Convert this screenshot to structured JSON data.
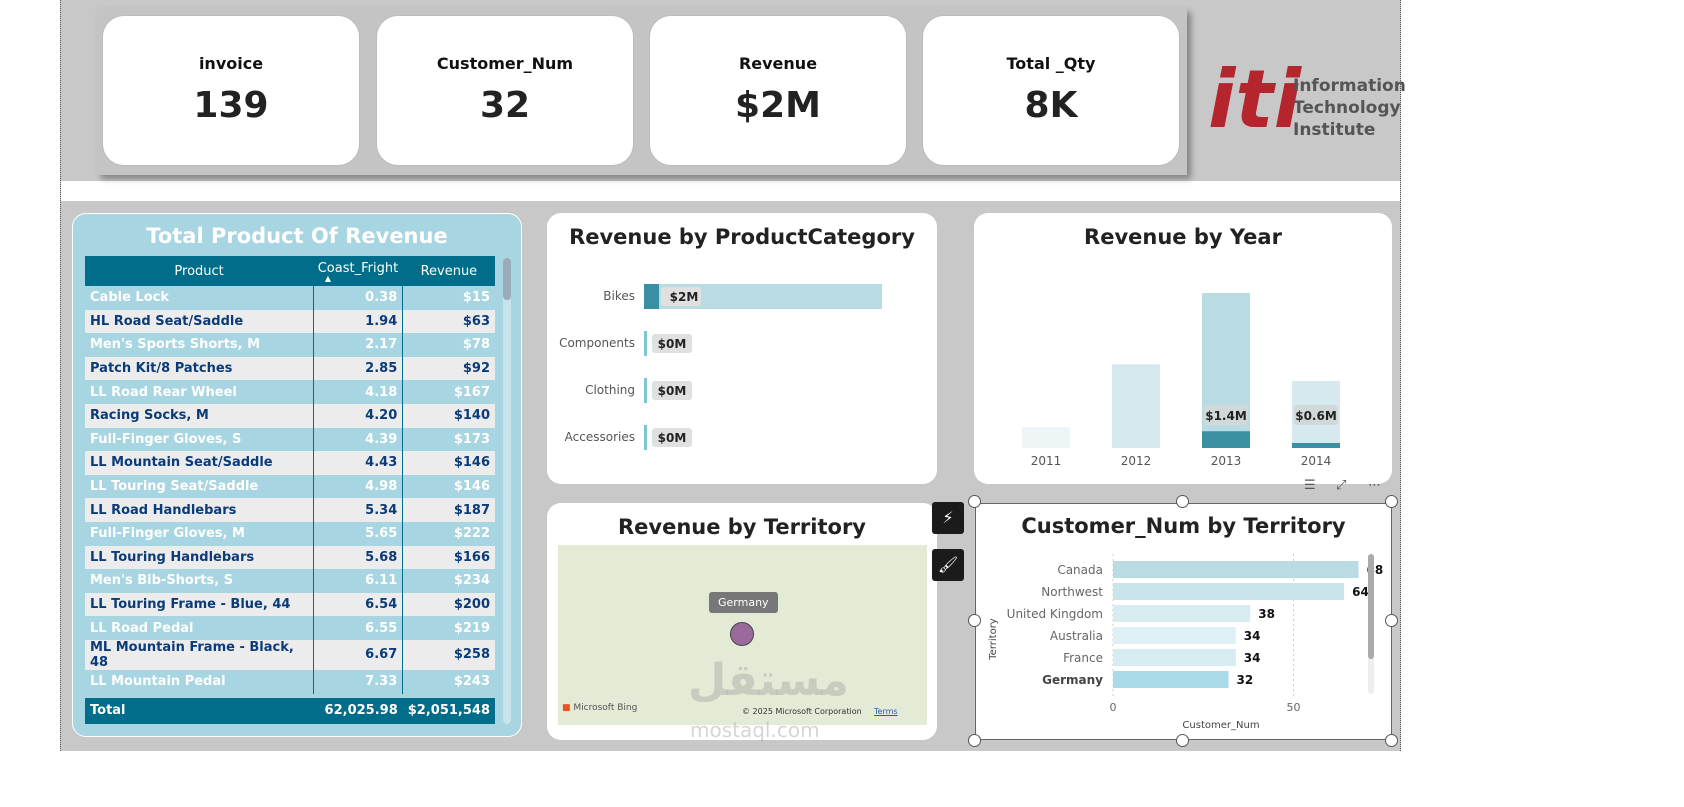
{
  "kpis": [
    {
      "title": "invoice",
      "value": "139"
    },
    {
      "title": "Customer_Num",
      "value": "32"
    },
    {
      "title": "Revenue",
      "value": "$2M"
    },
    {
      "title": "Total _Qty",
      "value": "8K"
    }
  ],
  "logo": {
    "mark": "iti",
    "lines": [
      "Information",
      "Technology",
      "Institute"
    ],
    "color": "#b5252d"
  },
  "table": {
    "title": "Total Product Of Revenue",
    "columns": [
      "Product",
      "Coast_Fright",
      "Revenue"
    ],
    "rows": [
      [
        "Cable Lock",
        "0.38",
        "$15"
      ],
      [
        "HL Road Seat/Saddle",
        "1.94",
        "$63"
      ],
      [
        "Men's Sports Shorts, M",
        "2.17",
        "$78"
      ],
      [
        "Patch Kit/8 Patches",
        "2.85",
        "$92"
      ],
      [
        "LL Road Rear Wheel",
        "4.18",
        "$167"
      ],
      [
        "Racing Socks, M",
        "4.20",
        "$140"
      ],
      [
        "Full-Finger Gloves, S",
        "4.39",
        "$173"
      ],
      [
        "LL Mountain Seat/Saddle",
        "4.43",
        "$146"
      ],
      [
        "LL Touring Seat/Saddle",
        "4.98",
        "$146"
      ],
      [
        "LL Road Handlebars",
        "5.34",
        "$187"
      ],
      [
        "Full-Finger Gloves, M",
        "5.65",
        "$222"
      ],
      [
        "LL Touring Handlebars",
        "5.68",
        "$166"
      ],
      [
        "Men's Bib-Shorts, S",
        "6.11",
        "$234"
      ],
      [
        "LL Touring Frame - Blue, 44",
        "6.54",
        "$200"
      ],
      [
        "LL Road Pedal",
        "6.55",
        "$219"
      ],
      [
        "ML Mountain Frame - Black, 48",
        "6.67",
        "$258"
      ],
      [
        "LL Mountain Pedal",
        "7.33",
        "$243"
      ]
    ],
    "total": [
      "Total",
      "62,025.98",
      "$2,051,548"
    ]
  },
  "chart_data": [
    {
      "type": "bar",
      "orientation": "horizontal",
      "title": "Revenue by ProductCategory",
      "categories": [
        "Bikes",
        "Components",
        "Clothing",
        "Accessories"
      ],
      "values": [
        2.0,
        0.01,
        0.005,
        0.003
      ],
      "data_labels": [
        "$2M",
        "$0M",
        "$0M",
        "$0M"
      ],
      "unit": "$M"
    },
    {
      "type": "bar",
      "title": "Revenue by Year",
      "categories": [
        "2011",
        "2012",
        "2013",
        "2014"
      ],
      "values": [
        0.25,
        1.0,
        1.85,
        0.8
      ],
      "highlight_values": [
        0,
        0,
        0.2,
        0.05
      ],
      "data_labels": [
        "",
        "",
        "$1.4M",
        "$0.6M"
      ]
    },
    {
      "type": "bar",
      "orientation": "horizontal",
      "title": "Customer_Num by Territory",
      "categories": [
        "Canada",
        "Northwest",
        "United Kingdom",
        "Australia",
        "France",
        "Germany"
      ],
      "values": [
        68,
        64,
        38,
        34,
        34,
        32
      ],
      "xlabel": "Customer_Num",
      "ylabel": "Territory",
      "xticks": [
        0,
        50
      ],
      "xlim": [
        0,
        72
      ],
      "selected": "Germany"
    }
  ],
  "map": {
    "title": "Revenue by Territory",
    "bubble_label": "Germany",
    "attribution": "Microsoft Bing",
    "copyright": "© 2025 Microsoft Corporation",
    "terms": "Terms"
  },
  "watermark": {
    "ar": "مستقل",
    "en": "mostaql.com"
  },
  "colors": {
    "header": "#006e8a",
    "table_bg": "#a7d5e1",
    "bar": "#b9dbe3",
    "bar_dark": "#3a8fa3"
  }
}
